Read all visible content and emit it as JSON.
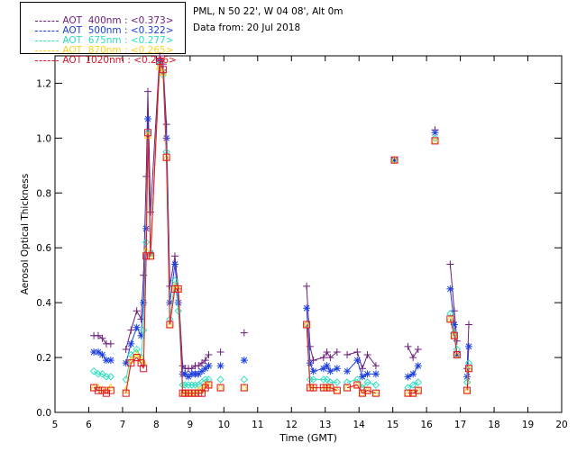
{
  "info": {
    "location": "PML, N 50 22', W 04 08', Alt 0m",
    "date": "Data from: 20 Jul 2018"
  },
  "chart_data": {
    "type": "scatter",
    "xlabel": "Time (GMT)",
    "ylabel": "Aerosol Optical Thickness",
    "xlim": [
      5,
      20
    ],
    "ylim": [
      0,
      1.3
    ],
    "xticks": [
      5,
      6,
      7,
      8,
      9,
      10,
      11,
      12,
      13,
      14,
      15,
      16,
      17,
      18,
      19,
      20
    ],
    "yticks": [
      0.0,
      0.2,
      0.4,
      0.6,
      0.8,
      1.0,
      1.2
    ],
    "ytick_labels": [
      "0.0",
      "0.2",
      "0.4",
      "0.6",
      "0.8",
      "1.0",
      "1.2"
    ],
    "grid": false,
    "legend_position": "top-left",
    "series": [
      {
        "name": "AOT  400nm : <0.373>",
        "color": "#6b1f7a",
        "marker": "plus",
        "x": [
          6.15,
          6.28,
          6.4,
          6.52,
          6.65,
          7.1,
          7.25,
          7.42,
          7.55,
          7.62,
          7.7,
          7.75,
          7.83,
          8.1,
          8.2,
          8.3,
          8.4,
          8.55,
          8.65,
          8.78,
          8.85,
          8.95,
          9.05,
          9.15,
          9.25,
          9.35,
          9.45,
          9.55,
          9.9,
          10.6,
          12.45,
          12.55,
          12.65,
          12.95,
          13.05,
          13.15,
          13.35,
          13.65,
          13.95,
          14.1,
          14.25,
          14.5,
          15.05,
          15.45,
          15.6,
          15.75,
          16.25,
          16.7,
          16.82,
          16.9,
          17.2,
          17.25
        ],
        "y": [
          0.28,
          0.28,
          0.27,
          0.25,
          0.25,
          0.23,
          0.3,
          0.37,
          0.34,
          0.5,
          0.86,
          1.17,
          0.73,
          1.3,
          1.27,
          1.05,
          0.46,
          0.57,
          0.45,
          0.17,
          0.16,
          0.16,
          0.16,
          0.17,
          0.17,
          0.18,
          0.19,
          0.21,
          0.22,
          0.29,
          0.46,
          0.24,
          0.19,
          0.2,
          0.22,
          0.2,
          0.22,
          0.21,
          0.22,
          0.16,
          0.21,
          0.17,
          0.92,
          0.24,
          0.2,
          0.23,
          1.03,
          0.54,
          0.37,
          0.26,
          0.16,
          0.32
        ]
      },
      {
        "name": "AOT  500nm : <0.322>",
        "color": "#1c3fe0",
        "marker": "asterisk",
        "x": [
          6.15,
          6.28,
          6.4,
          6.52,
          6.65,
          7.1,
          7.25,
          7.42,
          7.55,
          7.62,
          7.7,
          7.75,
          7.83,
          8.1,
          8.2,
          8.3,
          8.4,
          8.55,
          8.65,
          8.78,
          8.85,
          8.95,
          9.05,
          9.15,
          9.25,
          9.35,
          9.45,
          9.55,
          9.9,
          10.6,
          12.45,
          12.55,
          12.65,
          12.95,
          13.05,
          13.15,
          13.35,
          13.65,
          13.95,
          14.1,
          14.25,
          14.5,
          15.05,
          15.45,
          15.6,
          15.75,
          16.25,
          16.7,
          16.82,
          16.9,
          17.2,
          17.25
        ],
        "y": [
          0.22,
          0.22,
          0.21,
          0.19,
          0.19,
          0.18,
          0.25,
          0.31,
          0.28,
          0.4,
          0.67,
          1.07,
          0.58,
          1.28,
          1.24,
          1.0,
          0.4,
          0.54,
          0.4,
          0.14,
          0.14,
          0.13,
          0.14,
          0.14,
          0.14,
          0.15,
          0.16,
          0.17,
          0.17,
          0.19,
          0.38,
          0.18,
          0.15,
          0.16,
          0.17,
          0.15,
          0.16,
          0.15,
          0.19,
          0.13,
          0.14,
          0.14,
          0.92,
          0.13,
          0.14,
          0.17,
          1.02,
          0.45,
          0.32,
          0.21,
          0.13,
          0.24
        ]
      },
      {
        "name": "AOT  675nm : <0.277>",
        "color": "#2fe0c0",
        "marker": "diamond",
        "x": [
          6.15,
          6.28,
          6.4,
          6.52,
          6.65,
          7.1,
          7.25,
          7.42,
          7.55,
          7.62,
          7.7,
          7.75,
          7.83,
          8.1,
          8.2,
          8.3,
          8.4,
          8.55,
          8.65,
          8.78,
          8.85,
          8.95,
          9.05,
          9.15,
          9.25,
          9.35,
          9.45,
          9.55,
          9.9,
          10.6,
          12.45,
          12.55,
          12.65,
          12.95,
          13.05,
          13.15,
          13.35,
          13.65,
          13.95,
          14.1,
          14.25,
          14.5,
          15.05,
          15.45,
          15.6,
          15.75,
          16.25,
          16.7,
          16.82,
          16.9,
          17.2,
          17.25
        ],
        "y": [
          0.15,
          0.14,
          0.14,
          0.13,
          0.13,
          0.12,
          0.21,
          0.23,
          0.2,
          0.3,
          0.62,
          1.02,
          0.58,
          1.27,
          1.23,
          0.95,
          0.34,
          0.48,
          0.37,
          0.1,
          0.1,
          0.1,
          0.1,
          0.1,
          0.1,
          0.11,
          0.12,
          0.12,
          0.12,
          0.12,
          0.32,
          0.12,
          0.12,
          0.12,
          0.12,
          0.11,
          0.11,
          0.11,
          0.12,
          0.09,
          0.11,
          0.1,
          0.92,
          0.09,
          0.1,
          0.11,
          1.0,
          0.36,
          0.29,
          0.23,
          0.11,
          0.18
        ]
      },
      {
        "name": "AOT  870nm : <0.265>",
        "color": "#ffd21e",
        "marker": "triangle",
        "x": [
          6.15,
          6.28,
          6.4,
          6.52,
          6.65,
          7.1,
          7.25,
          7.42,
          7.55,
          7.62,
          7.7,
          7.75,
          7.83,
          8.1,
          8.2,
          8.3,
          8.4,
          8.55,
          8.65,
          8.78,
          8.85,
          8.95,
          9.05,
          9.15,
          9.25,
          9.35,
          9.45,
          9.55,
          9.9,
          10.6,
          12.45,
          12.55,
          12.65,
          12.95,
          13.05,
          13.15,
          13.35,
          13.65,
          13.95,
          14.1,
          14.25,
          14.5,
          15.05,
          15.45,
          15.6,
          15.75,
          16.25,
          16.7,
          16.82,
          16.9,
          17.2,
          17.25
        ],
        "y": [
          0.09,
          0.09,
          0.08,
          0.08,
          0.09,
          0.08,
          0.19,
          0.21,
          0.19,
          0.18,
          0.59,
          1.01,
          0.57,
          1.26,
          1.24,
          0.93,
          0.32,
          0.46,
          0.45,
          0.07,
          0.07,
          0.07,
          0.07,
          0.07,
          0.08,
          0.08,
          0.1,
          0.1,
          0.09,
          0.09,
          0.32,
          0.09,
          0.09,
          0.09,
          0.09,
          0.09,
          0.08,
          0.09,
          0.1,
          0.07,
          0.08,
          0.07,
          0.92,
          0.07,
          0.07,
          0.08,
          0.99,
          0.34,
          0.28,
          0.21,
          0.08,
          0.16
        ]
      },
      {
        "name": "AOT 1020nm : <0.246>",
        "color": "#e0162b",
        "marker": "square",
        "x": [
          6.15,
          6.28,
          6.4,
          6.52,
          6.65,
          7.1,
          7.25,
          7.42,
          7.55,
          7.62,
          7.7,
          7.75,
          7.83,
          8.1,
          8.2,
          8.3,
          8.4,
          8.55,
          8.65,
          8.78,
          8.85,
          8.95,
          9.05,
          9.15,
          9.25,
          9.35,
          9.45,
          9.55,
          9.9,
          10.6,
          12.45,
          12.55,
          12.65,
          12.95,
          13.05,
          13.15,
          13.35,
          13.65,
          13.95,
          14.1,
          14.25,
          14.5,
          15.05,
          15.45,
          15.6,
          15.75,
          16.25,
          16.7,
          16.82,
          16.9,
          17.2,
          17.25
        ],
        "y": [
          0.09,
          0.08,
          0.08,
          0.07,
          0.08,
          0.07,
          0.18,
          0.2,
          0.18,
          0.16,
          0.57,
          1.02,
          0.57,
          1.28,
          1.25,
          0.93,
          0.32,
          0.45,
          0.45,
          0.07,
          0.07,
          0.07,
          0.07,
          0.07,
          0.07,
          0.07,
          0.09,
          0.1,
          0.09,
          0.09,
          0.32,
          0.09,
          0.09,
          0.09,
          0.09,
          0.09,
          0.08,
          0.09,
          0.1,
          0.07,
          0.08,
          0.07,
          0.92,
          0.07,
          0.07,
          0.08,
          0.99,
          0.34,
          0.28,
          0.21,
          0.08,
          0.16
        ]
      }
    ]
  }
}
